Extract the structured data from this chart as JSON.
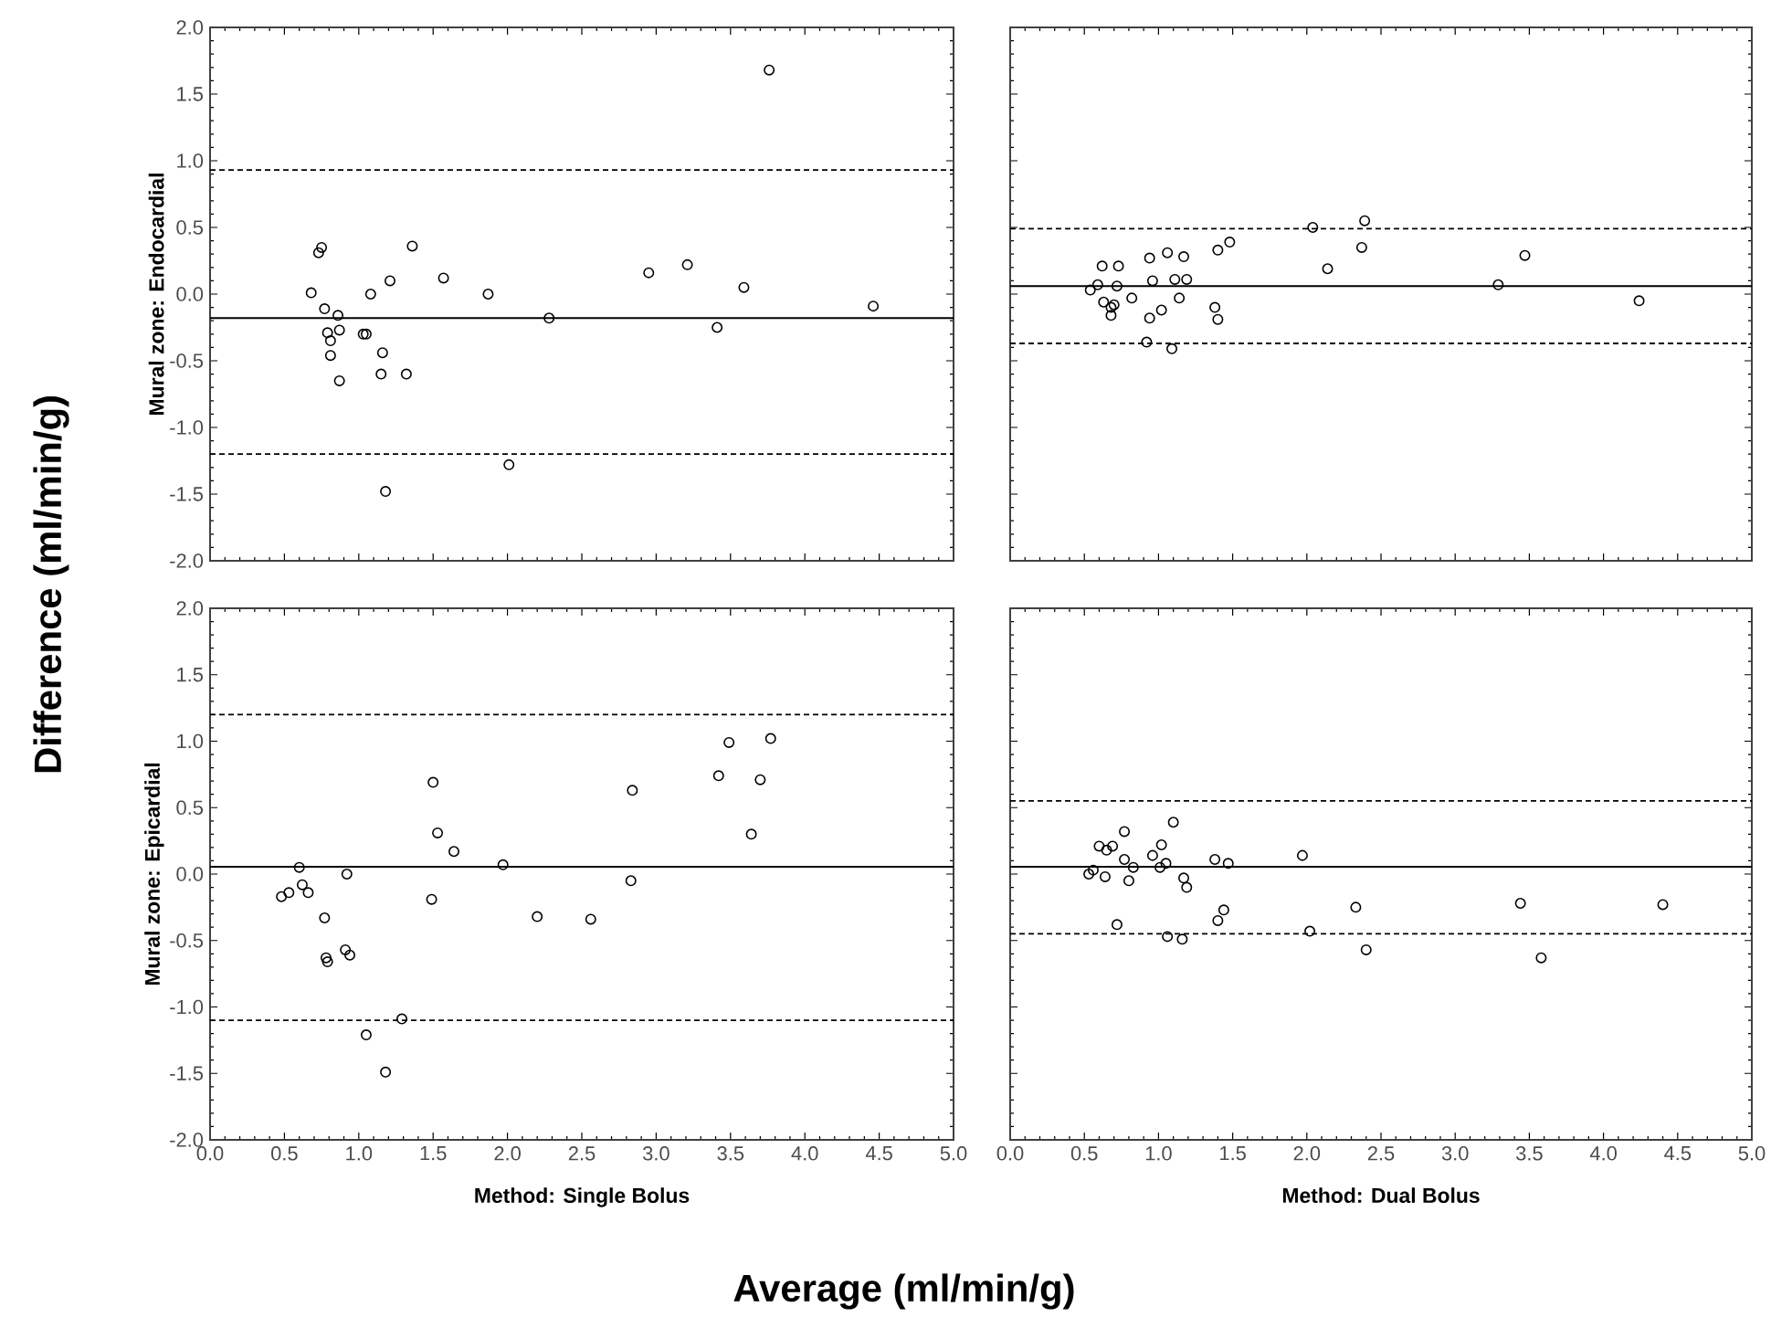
{
  "chart_data": [
    {
      "type": "scatter",
      "ylabel": "Mural zone: Endocardial",
      "annotations": [
        "Difference (ml/min/g)"
      ],
      "xlim": [
        0,
        5
      ],
      "ylim": [
        -2,
        2
      ],
      "xticks": [
        {
          "value": 0,
          "label": null
        },
        {
          "value": 0.5,
          "label": null
        },
        {
          "value": 1,
          "label": null
        },
        {
          "value": 1.5,
          "label": null
        },
        {
          "value": 2,
          "label": null
        },
        {
          "value": 2.5,
          "label": null
        },
        {
          "value": 3,
          "label": null
        },
        {
          "value": 3.5,
          "label": null
        },
        {
          "value": 4,
          "label": null
        },
        {
          "value": 4.5,
          "label": null
        },
        {
          "value": 5,
          "label": null
        }
      ],
      "yticks": [
        {
          "value": -2,
          "label": "-2.0"
        },
        {
          "value": -1.5,
          "label": "-1.5"
        },
        {
          "value": -1,
          "label": "-1.0"
        },
        {
          "value": -0.5,
          "label": "-0.5"
        },
        {
          "value": 0,
          "label": "0.0"
        },
        {
          "value": 0.5,
          "label": "0.5"
        },
        {
          "value": 1,
          "label": "1.0"
        },
        {
          "value": 1.5,
          "label": "1.5"
        },
        {
          "value": 2,
          "label": "2.0"
        }
      ],
      "tick_labels": "y",
      "marker": "circle",
      "series": [
        {
          "color": "#000000",
          "x": [
            0.68,
            0.75,
            0.73,
            0.77,
            0.79,
            0.81,
            0.81,
            0.86,
            0.87,
            0.87,
            1.03,
            1.05,
            1.08,
            1.16,
            1.15,
            1.21,
            1.32,
            1.36,
            1.57,
            1.87,
            2.01,
            2.28,
            2.95,
            3.21,
            3.41,
            3.59,
            3.76,
            4.46,
            1.18
          ],
          "values": [
            0.01,
            0.35,
            0.31,
            -0.11,
            -0.29,
            -0.35,
            -0.46,
            -0.16,
            -0.27,
            -0.65,
            -0.3,
            -0.3,
            0.0,
            -0.44,
            -0.6,
            0.1,
            -0.6,
            0.36,
            0.12,
            0.0,
            -1.28,
            -0.18,
            0.16,
            0.22,
            -0.25,
            0.05,
            1.68,
            -0.09,
            -1.48
          ]
        }
      ],
      "ref_lines": [
        {
          "axis": "y",
          "value": -0.18,
          "color": "#000000",
          "line_style": "solid"
        },
        {
          "axis": "y",
          "value": 0.93,
          "color": "#000000",
          "line_style": "dashed"
        },
        {
          "axis": "y",
          "value": -1.2,
          "color": "#000000",
          "line_style": "dashed"
        }
      ]
    },
    {
      "type": "scatter",
      "xlim": [
        0,
        5
      ],
      "ylim": [
        -2,
        2
      ],
      "xticks": [
        {
          "value": 0,
          "label": null
        },
        {
          "value": 0.5,
          "label": null
        },
        {
          "value": 1,
          "label": null
        },
        {
          "value": 1.5,
          "label": null
        },
        {
          "value": 2,
          "label": null
        },
        {
          "value": 2.5,
          "label": null
        },
        {
          "value": 3,
          "label": null
        },
        {
          "value": 3.5,
          "label": null
        },
        {
          "value": 4,
          "label": null
        },
        {
          "value": 4.5,
          "label": null
        },
        {
          "value": 5,
          "label": null
        }
      ],
      "yticks": [
        {
          "value": -2,
          "label": null
        },
        {
          "value": -1.5,
          "label": null
        },
        {
          "value": -1,
          "label": null
        },
        {
          "value": -0.5,
          "label": null
        },
        {
          "value": 0,
          "label": null
        },
        {
          "value": 0.5,
          "label": null
        },
        {
          "value": 1,
          "label": null
        },
        {
          "value": 1.5,
          "label": null
        },
        {
          "value": 2,
          "label": null
        }
      ],
      "tick_labels": false,
      "marker": "circle",
      "series": [
        {
          "color": "#000000",
          "x": [
            0.54,
            0.59,
            0.62,
            0.73,
            0.63,
            0.72,
            0.68,
            0.68,
            0.7,
            0.82,
            0.94,
            0.96,
            0.94,
            0.92,
            1.02,
            1.06,
            1.09,
            1.11,
            1.17,
            1.19,
            1.14,
            1.38,
            1.4,
            1.4,
            1.48,
            2.04,
            2.14,
            2.37,
            2.39,
            3.29,
            3.47,
            4.24
          ],
          "values": [
            0.03,
            0.07,
            0.21,
            0.21,
            -0.06,
            0.06,
            -0.1,
            -0.16,
            -0.08,
            -0.03,
            0.27,
            0.1,
            -0.18,
            -0.36,
            -0.12,
            0.31,
            -0.41,
            0.11,
            0.28,
            0.11,
            -0.03,
            -0.1,
            -0.19,
            0.33,
            0.39,
            0.5,
            0.19,
            0.35,
            0.55,
            0.07,
            0.29,
            -0.05
          ]
        }
      ],
      "ref_lines": [
        {
          "axis": "y",
          "value": 0.06,
          "color": "#000000",
          "line_style": "solid"
        },
        {
          "axis": "y",
          "value": 0.49,
          "color": "#000000",
          "line_style": "dashed"
        },
        {
          "axis": "y",
          "value": -0.37,
          "color": "#000000",
          "line_style": "dashed"
        }
      ]
    },
    {
      "type": "scatter",
      "xlabel": "Method: Single Bolus",
      "ylabel": "Mural zone: Epicardial",
      "annotations": [
        "Average (ml/min/g)"
      ],
      "xlim": [
        0,
        5
      ],
      "ylim": [
        -2,
        2
      ],
      "xticks": [
        {
          "value": 0,
          "label": "0.0"
        },
        {
          "value": 0.5,
          "label": "0.5"
        },
        {
          "value": 1,
          "label": "1.0"
        },
        {
          "value": 1.5,
          "label": "1.5"
        },
        {
          "value": 2,
          "label": "2.0"
        },
        {
          "value": 2.5,
          "label": "2.5"
        },
        {
          "value": 3,
          "label": "3.0"
        },
        {
          "value": 3.5,
          "label": "3.5"
        },
        {
          "value": 4,
          "label": "4.0"
        },
        {
          "value": 4.5,
          "label": "4.5"
        },
        {
          "value": 5,
          "label": "5.0"
        }
      ],
      "yticks": [
        {
          "value": -2,
          "label": "-2.0"
        },
        {
          "value": -1.5,
          "label": "-1.5"
        },
        {
          "value": -1,
          "label": "-1.0"
        },
        {
          "value": -0.5,
          "label": "-0.5"
        },
        {
          "value": 0,
          "label": "0.0"
        },
        {
          "value": 0.5,
          "label": "0.5"
        },
        {
          "value": 1,
          "label": "1.0"
        },
        {
          "value": 1.5,
          "label": "1.5"
        },
        {
          "value": 2,
          "label": "2.0"
        }
      ],
      "marker": "circle",
      "series": [
        {
          "color": "#000000",
          "x": [
            0.48,
            0.53,
            0.6,
            0.62,
            0.66,
            0.77,
            0.78,
            0.79,
            0.91,
            0.94,
            0.92,
            1.05,
            1.18,
            1.29,
            1.49,
            1.5,
            1.53,
            1.64,
            1.97,
            2.2,
            2.56,
            2.83,
            2.84,
            3.42,
            3.49,
            3.64,
            3.7,
            3.77
          ],
          "values": [
            -0.17,
            -0.14,
            0.05,
            -0.08,
            -0.14,
            -0.33,
            -0.63,
            -0.66,
            -0.57,
            -0.61,
            0.0,
            -1.21,
            -1.49,
            -1.09,
            -0.19,
            0.69,
            0.31,
            0.17,
            0.07,
            -0.32,
            -0.34,
            -0.05,
            0.63,
            0.74,
            0.99,
            0.3,
            0.71,
            1.02
          ]
        }
      ],
      "ref_lines": [
        {
          "axis": "y",
          "value": 0.055,
          "color": "#000000",
          "line_style": "solid"
        },
        {
          "axis": "y",
          "value": 1.2,
          "color": "#000000",
          "line_style": "dashed"
        },
        {
          "axis": "y",
          "value": -1.1,
          "color": "#000000",
          "line_style": "dashed"
        }
      ]
    },
    {
      "type": "scatter",
      "xlabel": "Method: Dual Bolus",
      "xlim": [
        0,
        5
      ],
      "ylim": [
        -2,
        2
      ],
      "xticks": [
        {
          "value": 0,
          "label": "0.0"
        },
        {
          "value": 0.5,
          "label": "0.5"
        },
        {
          "value": 1,
          "label": "1.0"
        },
        {
          "value": 1.5,
          "label": "1.5"
        },
        {
          "value": 2,
          "label": "2.0"
        },
        {
          "value": 2.5,
          "label": "2.5"
        },
        {
          "value": 3,
          "label": "3.0"
        },
        {
          "value": 3.5,
          "label": "3.5"
        },
        {
          "value": 4,
          "label": "4.0"
        },
        {
          "value": 4.5,
          "label": "4.5"
        },
        {
          "value": 5,
          "label": "5.0"
        }
      ],
      "yticks": [
        {
          "value": -2,
          "label": null
        },
        {
          "value": -1.5,
          "label": null
        },
        {
          "value": -1,
          "label": null
        },
        {
          "value": -0.5,
          "label": null
        },
        {
          "value": 0,
          "label": null
        },
        {
          "value": 0.5,
          "label": null
        },
        {
          "value": 1,
          "label": null
        },
        {
          "value": 1.5,
          "label": null
        },
        {
          "value": 2,
          "label": null
        }
      ],
      "tick_labels": "x",
      "marker": "circle",
      "series": [
        {
          "color": "#000000",
          "x": [
            0.53,
            0.56,
            0.6,
            0.65,
            0.64,
            0.69,
            0.77,
            0.77,
            0.8,
            0.83,
            0.72,
            0.96,
            1.02,
            1.01,
            1.05,
            1.1,
            1.17,
            1.19,
            1.06,
            1.16,
            1.38,
            1.47,
            1.4,
            1.44,
            1.97,
            2.02,
            2.33,
            2.4,
            3.44,
            3.58,
            4.4
          ],
          "values": [
            0.0,
            0.03,
            0.21,
            0.18,
            -0.02,
            0.21,
            0.32,
            0.11,
            -0.05,
            0.05,
            -0.38,
            0.14,
            0.22,
            0.05,
            0.08,
            0.39,
            -0.03,
            -0.1,
            -0.47,
            -0.49,
            0.11,
            0.08,
            -0.35,
            -0.27,
            0.14,
            -0.43,
            -0.25,
            -0.57,
            -0.22,
            -0.63,
            -0.23
          ]
        }
      ],
      "ref_lines": [
        {
          "axis": "y",
          "value": 0.055,
          "color": "#000000",
          "line_style": "solid"
        },
        {
          "axis": "y",
          "value": 0.55,
          "color": "#000000",
          "line_style": "dashed"
        },
        {
          "axis": "y",
          "value": -0.45,
          "color": "#000000",
          "line_style": "dashed"
        }
      ]
    }
  ]
}
